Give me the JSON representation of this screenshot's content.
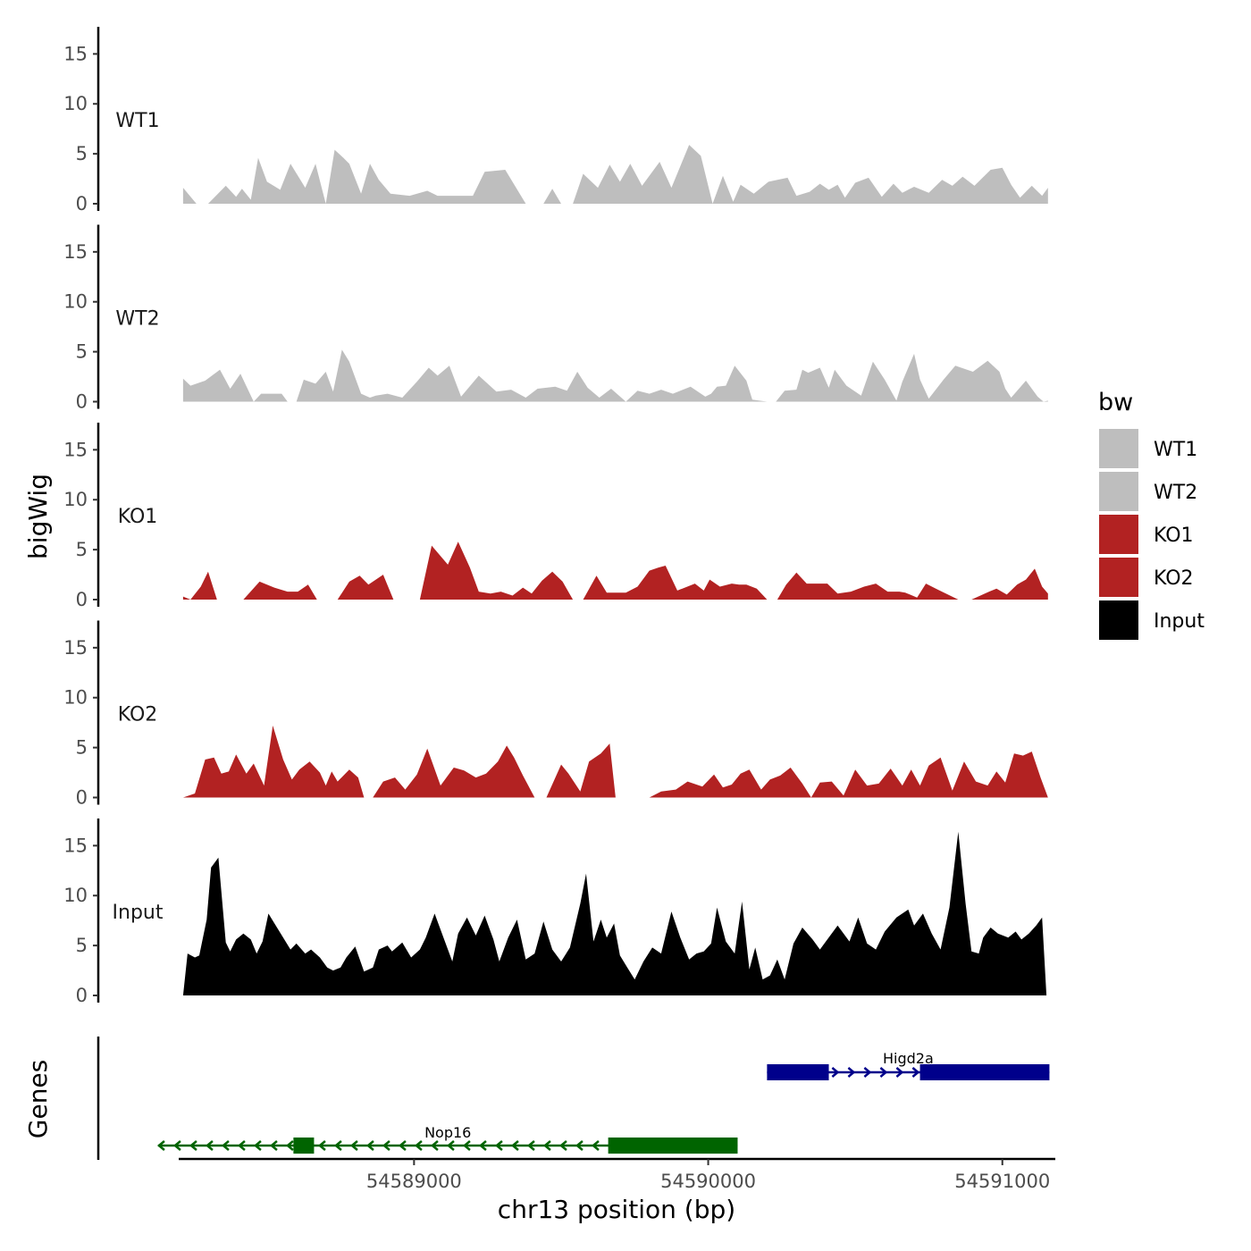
{
  "chart_data": {
    "type": "area",
    "ylabel": "bigWig",
    "genes_label": "Genes",
    "xlabel": "chr13 position (bp)",
    "xlim": [
      54588200,
      54591180
    ],
    "ylim": [
      0,
      17
    ],
    "y_ticks": [
      {
        "value": 0,
        "label": "0"
      },
      {
        "value": 5,
        "label": "5"
      },
      {
        "value": 10,
        "label": "10"
      },
      {
        "value": 15,
        "label": "15"
      }
    ],
    "x_ticks": [
      {
        "value": 54589000,
        "label": "54589000"
      },
      {
        "value": 54590000,
        "label": "54590000"
      },
      {
        "value": 54591000,
        "label": "54591000"
      }
    ],
    "tracks": [
      {
        "name": "WT1",
        "color": "#bebebe",
        "x": [
          54588215,
          54588260,
          54588300,
          54588360,
          54588395,
          54588415,
          54588445,
          54588470,
          54588500,
          54588545,
          54588580,
          54588630,
          54588665,
          54588700,
          54588730,
          54588760,
          54588780,
          54588820,
          54588850,
          54588880,
          54588920,
          54588985,
          54589045,
          54589080,
          54589130,
          54589200,
          54589240,
          54589310,
          54589380,
          54589440,
          54589470,
          54589500,
          54589540,
          54589575,
          54589625,
          54589665,
          54589700,
          54589735,
          54589775,
          54589835,
          54589875,
          54589935,
          54589975,
          54590015,
          54590050,
          54590085,
          54590110,
          54590155,
          54590205,
          54590270,
          54590300,
          54590345,
          54590380,
          54590410,
          54590440,
          54590465,
          54590500,
          54590545,
          54590590,
          54590630,
          54590660,
          54590700,
          54590750,
          54590795,
          54590830,
          54590865,
          54590905,
          54590960,
          54591000,
          54591030,
          54591060,
          54591100,
          54591135,
          54591155
        ],
        "y": [
          1.6,
          0,
          0,
          1.8,
          0.7,
          1.5,
          0.4,
          4.6,
          2.2,
          1.4,
          4.0,
          1.6,
          4.0,
          0,
          5.4,
          4.6,
          4.0,
          1.0,
          4.0,
          2.4,
          1.0,
          0.8,
          1.3,
          0.8,
          0.8,
          0.8,
          3.2,
          3.4,
          0,
          0,
          1.5,
          0,
          0,
          3.0,
          1.6,
          3.9,
          2.2,
          4.0,
          1.8,
          4.2,
          1.6,
          5.9,
          4.8,
          0,
          2.8,
          0.2,
          1.9,
          1.0,
          2.2,
          2.6,
          0.8,
          1.2,
          2.0,
          1.4,
          1.9,
          0.6,
          2.1,
          2.6,
          0.7,
          2.0,
          1.1,
          1.7,
          1.1,
          2.4,
          1.8,
          2.7,
          1.8,
          3.4,
          3.6,
          1.9,
          0.6,
          1.8,
          0.8,
          1.6
        ]
      },
      {
        "name": "WT2",
        "color": "#bebebe",
        "x": [
          54588215,
          54588240,
          54588290,
          54588340,
          54588375,
          54588410,
          54588455,
          54588480,
          54588510,
          54588550,
          54588570,
          54588600,
          54588625,
          54588665,
          54588700,
          54588725,
          54588755,
          54588780,
          54588820,
          54588850,
          54588870,
          54588910,
          54588960,
          54589010,
          54589050,
          54589080,
          54589120,
          54589160,
          54589220,
          54589280,
          54589330,
          54589380,
          54589420,
          54589480,
          54589520,
          54589555,
          54589590,
          54589630,
          54589670,
          54589720,
          54589760,
          54589800,
          54589840,
          54589880,
          54589940,
          54589990,
          54590010,
          54590030,
          54590060,
          54590090,
          54590130,
          54590150,
          54590200,
          54590230,
          54590260,
          54590300,
          54590320,
          54590340,
          54590380,
          54590410,
          54590430,
          54590470,
          54590520,
          54590560,
          54590600,
          54590640,
          54590660,
          54590680,
          54590700,
          54590720,
          54590750,
          54590800,
          54590840,
          54590900,
          54590950,
          54590990,
          54591010,
          54591030,
          54591080,
          54591120,
          54591140,
          54591155
        ],
        "y": [
          2.3,
          1.6,
          2.1,
          3.2,
          1.3,
          2.8,
          0,
          0.8,
          0.8,
          0.8,
          0,
          0,
          2.2,
          1.8,
          3.0,
          1.0,
          5.2,
          4.0,
          0.8,
          0.4,
          0.6,
          0.8,
          0.4,
          2.0,
          3.4,
          2.6,
          3.6,
          0.5,
          2.6,
          1.0,
          1.2,
          0.4,
          1.3,
          1.5,
          1.1,
          3.0,
          1.4,
          0.4,
          1.3,
          0,
          1.1,
          0.8,
          1.2,
          0.8,
          1.5,
          0.5,
          0.8,
          1.5,
          1.6,
          3.6,
          2.1,
          0.2,
          0,
          0,
          1.1,
          1.2,
          3.2,
          2.9,
          3.4,
          1.4,
          3.2,
          1.6,
          0.6,
          4.0,
          2.2,
          0.1,
          2.0,
          3.4,
          4.8,
          2.2,
          0.3,
          2.2,
          3.6,
          3.0,
          4.1,
          3.0,
          1.3,
          0.4,
          2.1,
          0.5,
          0,
          0.1
        ]
      },
      {
        "name": "KO1",
        "color": "#b22222",
        "x": [
          54588215,
          54588240,
          54588275,
          54588300,
          54588330,
          54588395,
          54588420,
          54588475,
          54588525,
          54588570,
          54588605,
          54588640,
          54588670,
          54588695,
          54588740,
          54588780,
          54588815,
          54588845,
          54588895,
          54588930,
          54588950,
          54588990,
          54589020,
          54589060,
          54589115,
          54589150,
          54589190,
          54589220,
          54589260,
          54589295,
          54589335,
          54589370,
          54589400,
          54589435,
          54589470,
          54589505,
          54589540,
          54589575,
          54589620,
          54589655,
          54589690,
          54589720,
          54589760,
          54589800,
          54589830,
          54589855,
          54589895,
          54589955,
          54589985,
          54590005,
          54590040,
          54590080,
          54590105,
          54590130,
          54590165,
          54590200,
          54590235,
          54590265,
          54590300,
          54590335,
          54590370,
          54590405,
          54590440,
          54590485,
          54590530,
          54590570,
          54590610,
          54590650,
          54590670,
          54590710,
          54590740,
          54590780,
          54590850,
          54590895,
          54590955,
          54590980,
          54591015,
          54591050,
          54591080,
          54591110,
          54591135,
          54591155
        ],
        "y": [
          0.3,
          0,
          1.3,
          2.8,
          0,
          0,
          0,
          1.8,
          1.2,
          0.8,
          0.8,
          1.5,
          0,
          0,
          0,
          1.8,
          2.4,
          1.5,
          2.5,
          0,
          0,
          0,
          0,
          5.4,
          3.5,
          5.8,
          3.2,
          0.8,
          0.6,
          0.8,
          0.4,
          1.2,
          0.6,
          1.9,
          2.8,
          1.8,
          0,
          0,
          2.4,
          0.7,
          0.7,
          0.7,
          1.3,
          2.9,
          3.2,
          3.4,
          0.9,
          1.6,
          0.9,
          2.0,
          1.3,
          1.6,
          1.5,
          1.5,
          1.1,
          0,
          0,
          1.5,
          2.7,
          1.6,
          1.6,
          1.6,
          0.6,
          0.8,
          1.3,
          1.6,
          0.8,
          0.8,
          0.7,
          0.2,
          1.6,
          1.0,
          0,
          0,
          0.8,
          1.1,
          0.5,
          1.5,
          2.0,
          3.1,
          1.3,
          0.6
        ]
      },
      {
        "name": "KO2",
        "color": "#b22222",
        "x": [
          54588215,
          54588255,
          54588290,
          54588320,
          54588345,
          54588370,
          54588395,
          54588430,
          54588455,
          54588490,
          54588520,
          54588555,
          54588585,
          54588610,
          54588645,
          54588680,
          54588700,
          54588720,
          54588740,
          54588780,
          54588810,
          54588830,
          54588860,
          54588895,
          54588935,
          54588970,
          54589010,
          54589045,
          54589090,
          54589135,
          54589170,
          54589210,
          54589245,
          54589285,
          54589315,
          54589340,
          54589370,
          54589410,
          54589450,
          54589500,
          54589525,
          54589565,
          54589595,
          54589635,
          54589665,
          54589685,
          54589720,
          54589760,
          54589800,
          54589840,
          54589890,
          54589930,
          54589980,
          54590020,
          54590050,
          54590080,
          54590110,
          54590140,
          54590180,
          54590210,
          54590245,
          54590280,
          54590320,
          54590350,
          54590380,
          54590420,
          54590460,
          54590500,
          54590540,
          54590580,
          54590620,
          54590660,
          54590690,
          54590720,
          54590750,
          54590790,
          54590830,
          54590870,
          54590910,
          54590950,
          54590980,
          54591010,
          54591040,
          54591070,
          54591100,
          54591130,
          54591155
        ],
        "y": [
          0,
          0.4,
          3.8,
          4.0,
          2.4,
          2.6,
          4.3,
          2.4,
          3.4,
          1.2,
          7.2,
          3.8,
          1.8,
          2.8,
          3.6,
          2.5,
          1.2,
          2.6,
          1.6,
          2.8,
          2.0,
          0,
          0,
          1.6,
          2.0,
          0.8,
          2.3,
          4.9,
          1.2,
          3.0,
          2.7,
          2.0,
          2.4,
          3.6,
          5.2,
          4.0,
          2.2,
          0,
          0,
          3.3,
          2.4,
          0.6,
          3.6,
          4.4,
          5.4,
          0,
          0,
          0,
          0,
          0.6,
          0.8,
          1.6,
          1.1,
          2.3,
          1.0,
          1.3,
          2.4,
          2.8,
          0.8,
          1.8,
          2.2,
          3.0,
          1.4,
          0,
          1.5,
          1.6,
          0.2,
          2.8,
          1.2,
          1.4,
          2.9,
          1.2,
          2.8,
          1.2,
          3.2,
          4.0,
          0.7,
          3.6,
          1.6,
          1.2,
          2.6,
          1.5,
          4.4,
          4.2,
          4.6,
          2.0,
          0
        ]
      },
      {
        "name": "Input",
        "color": "#000000",
        "x": [
          54588215,
          54588230,
          54588255,
          54588270,
          54588295,
          54588310,
          54588335,
          54588360,
          54588375,
          54588395,
          54588420,
          54588445,
          54588465,
          54588485,
          54588505,
          54588530,
          54588555,
          54588580,
          54588600,
          54588630,
          54588650,
          54588680,
          54588705,
          54588725,
          54588750,
          54588770,
          54588800,
          54588830,
          54588860,
          54588880,
          54588910,
          54588925,
          54588960,
          54588990,
          54589020,
          54589040,
          54589070,
          54589100,
          54589130,
          54589150,
          54589180,
          54589210,
          54589240,
          54589270,
          54589290,
          54589320,
          54589350,
          54589380,
          54589410,
          54589440,
          54589470,
          54589500,
          54589530,
          54589565,
          54589585,
          54589610,
          54589635,
          54589655,
          54589680,
          54589700,
          54589725,
          54589750,
          54589780,
          54589810,
          54589840,
          54589875,
          54589905,
          54589935,
          54589960,
          54589985,
          54590010,
          54590030,
          54590060,
          54590090,
          54590115,
          54590140,
          54590160,
          54590185,
          54590210,
          54590235,
          54590260,
          54590290,
          54590320,
          54590355,
          54590380,
          54590400,
          54590440,
          54590480,
          54590510,
          54590540,
          54590570,
          54590600,
          54590640,
          54590680,
          54590700,
          54590730,
          54590760,
          54590790,
          54590820,
          54590850,
          54590875,
          54590895,
          54590920,
          54590935,
          54590960,
          54590985,
          54591020,
          54591045,
          54591065,
          54591090,
          54591115,
          54591135,
          54591150
        ],
        "y": [
          0,
          4.2,
          3.8,
          4.0,
          7.6,
          12.8,
          13.8,
          5.3,
          4.4,
          5.6,
          6.2,
          5.6,
          4.2,
          5.4,
          8.2,
          7.0,
          5.8,
          4.6,
          5.2,
          4.2,
          4.6,
          3.8,
          2.8,
          2.5,
          2.8,
          3.8,
          4.9,
          2.4,
          2.8,
          4.6,
          5.0,
          4.4,
          5.3,
          3.8,
          4.6,
          5.8,
          8.2,
          5.8,
          3.4,
          6.2,
          7.8,
          6.0,
          8.0,
          5.6,
          3.4,
          5.8,
          7.6,
          3.6,
          4.2,
          7.4,
          4.6,
          3.4,
          4.8,
          9.2,
          12.2,
          5.4,
          7.6,
          5.8,
          7.2,
          4.0,
          2.8,
          1.6,
          3.4,
          4.8,
          4.2,
          8.4,
          5.8,
          3.6,
          4.2,
          4.4,
          5.2,
          8.8,
          5.4,
          4.2,
          9.4,
          2.6,
          4.8,
          1.6,
          2.0,
          3.6,
          1.6,
          5.2,
          6.8,
          5.6,
          4.6,
          5.4,
          7.0,
          5.4,
          7.8,
          5.2,
          4.6,
          6.4,
          7.8,
          8.6,
          7.0,
          8.2,
          6.2,
          4.6,
          8.8,
          16.4,
          9.2,
          4.4,
          4.2,
          5.8,
          6.8,
          6.2,
          5.8,
          6.4,
          5.6,
          6.2,
          7.0,
          7.8,
          0
        ]
      }
    ],
    "genes": [
      {
        "name": "Higd2a",
        "strand": "+",
        "color": "#00008b",
        "start": 54590200,
        "end": 54591160,
        "exons": [
          [
            54590200,
            54590410
          ],
          [
            54590720,
            54591160
          ]
        ]
      },
      {
        "name": "Nop16",
        "strand": "-",
        "color": "#006400",
        "start": 54588130,
        "end": 54590100,
        "exons": [
          [
            54588590,
            54588660
          ],
          [
            54589660,
            54590100
          ]
        ]
      }
    ],
    "legend": {
      "title": "bw",
      "position": "right",
      "items": [
        {
          "label": "WT1",
          "color": "#bebebe"
        },
        {
          "label": "WT2",
          "color": "#bebebe"
        },
        {
          "label": "KO1",
          "color": "#b22222"
        },
        {
          "label": "KO2",
          "color": "#b22222"
        },
        {
          "label": "Input",
          "color": "#000000"
        }
      ]
    }
  }
}
